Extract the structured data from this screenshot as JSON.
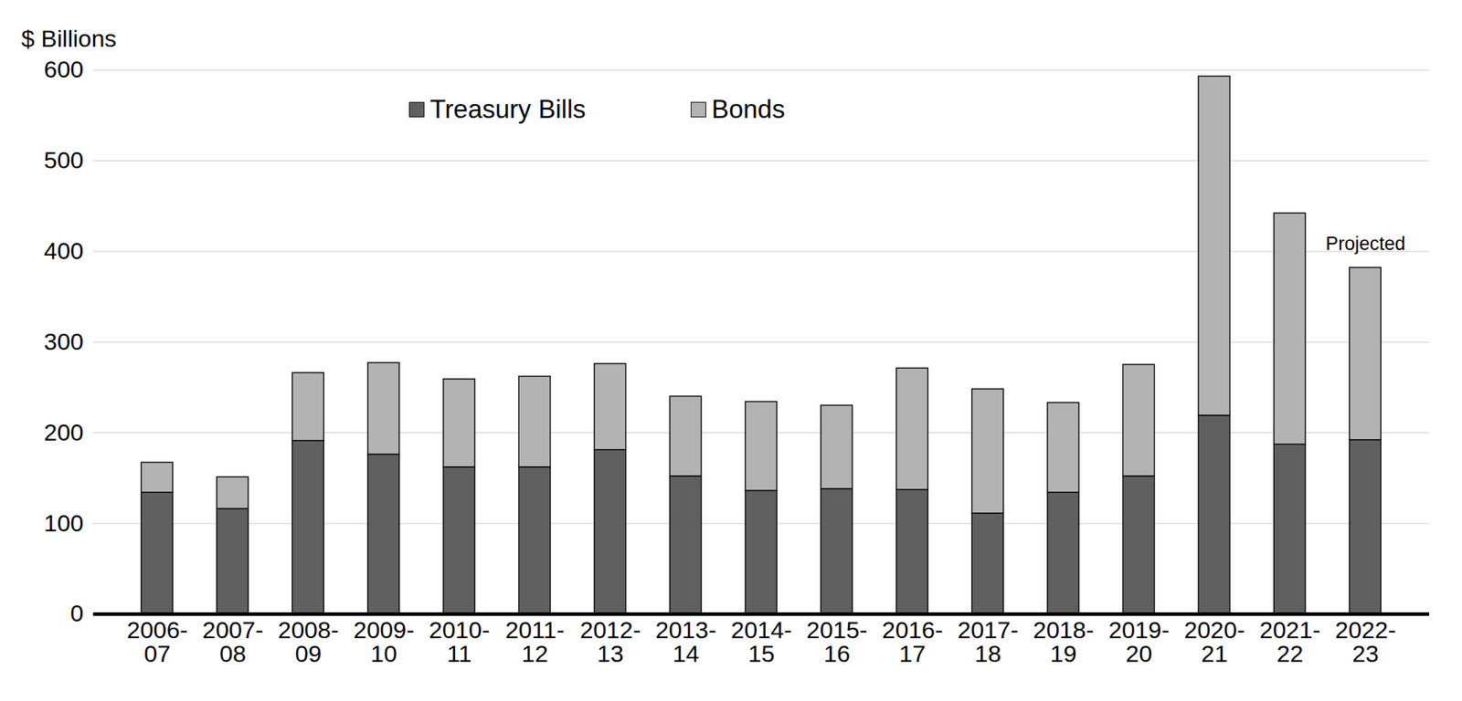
{
  "chart_data": {
    "type": "bar",
    "stacked": true,
    "y_label": "$ Billions",
    "categories": [
      "2006-07",
      "2007-08",
      "2008-09",
      "2009-10",
      "2010-11",
      "2011-12",
      "2012-13",
      "2013-14",
      "2014-15",
      "2015-16",
      "2016-17",
      "2017-18",
      "2018-19",
      "2019-20",
      "2020-21",
      "2021-22",
      "2022-23"
    ],
    "series": [
      {
        "name": "Treasury Bills",
        "color": "#606060",
        "values": [
          134,
          116,
          191,
          176,
          162,
          162,
          181,
          152,
          136,
          138,
          137,
          111,
          134,
          152,
          219,
          187,
          192
        ]
      },
      {
        "name": "Bonds",
        "color": "#b3b3b3",
        "values": [
          33,
          35,
          75,
          101,
          97,
          100,
          95,
          88,
          98,
          92,
          134,
          137,
          99,
          123,
          374,
          255,
          190
        ]
      }
    ],
    "ylim": [
      0,
      600
    ],
    "yticks": [
      0,
      100,
      200,
      300,
      400,
      500,
      600
    ],
    "grid": true,
    "legend": "top",
    "annotations": [
      {
        "text": "Projected",
        "category": "2022-23"
      }
    ]
  }
}
